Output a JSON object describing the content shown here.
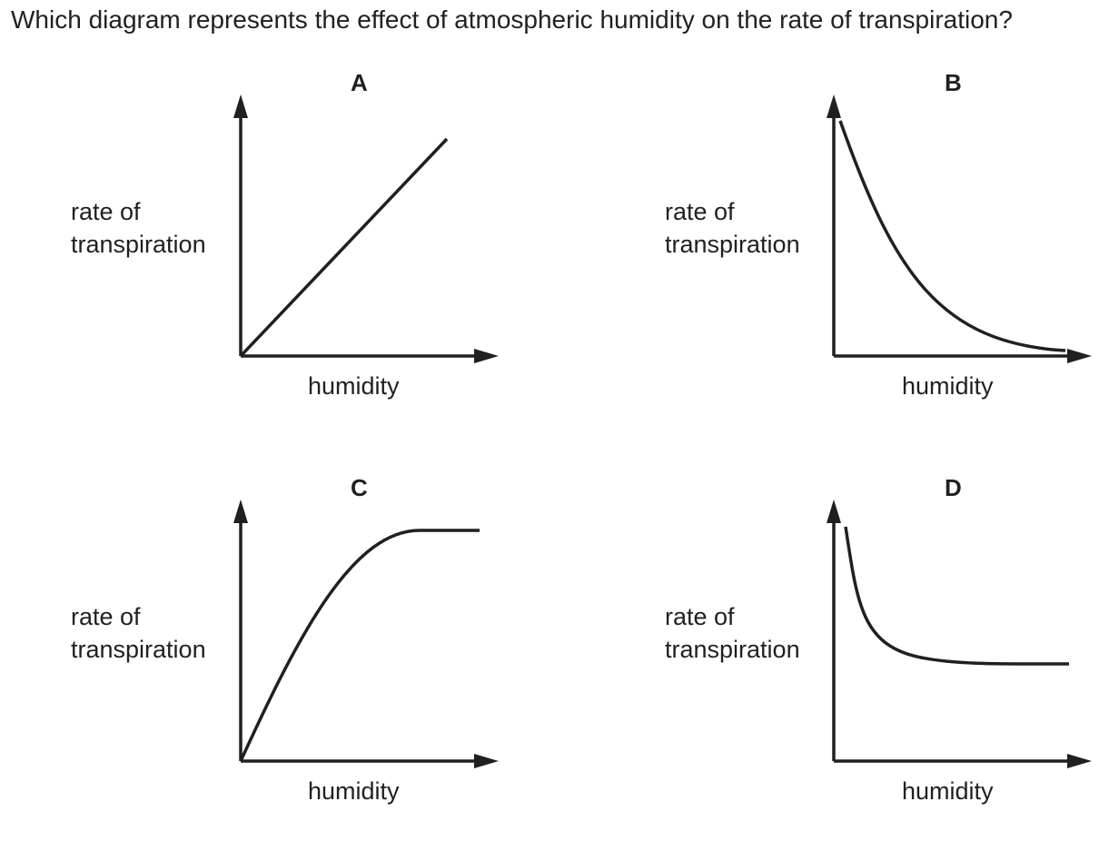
{
  "question": "Which diagram represents the effect of atmospheric humidity on the rate of transpiration?",
  "panels": [
    {
      "letter": "A",
      "y_label_line1": "rate of",
      "y_label_line2": "transpiration",
      "x_label": "humidity",
      "curve_shape": "straight-line-increasing"
    },
    {
      "letter": "B",
      "y_label_line1": "rate of",
      "y_label_line2": "transpiration",
      "x_label": "humidity",
      "curve_shape": "decreasing-curve-to-zero"
    },
    {
      "letter": "C",
      "y_label_line1": "rate of",
      "y_label_line2": "transpiration",
      "x_label": "humidity",
      "curve_shape": "increasing-then-plateau"
    },
    {
      "letter": "D",
      "y_label_line1": "rate of",
      "y_label_line2": "transpiration",
      "x_label": "humidity",
      "curve_shape": "sharp-drop-then-plateau"
    }
  ],
  "colors": {
    "ink": "#231f20",
    "background": "#ffffff"
  }
}
